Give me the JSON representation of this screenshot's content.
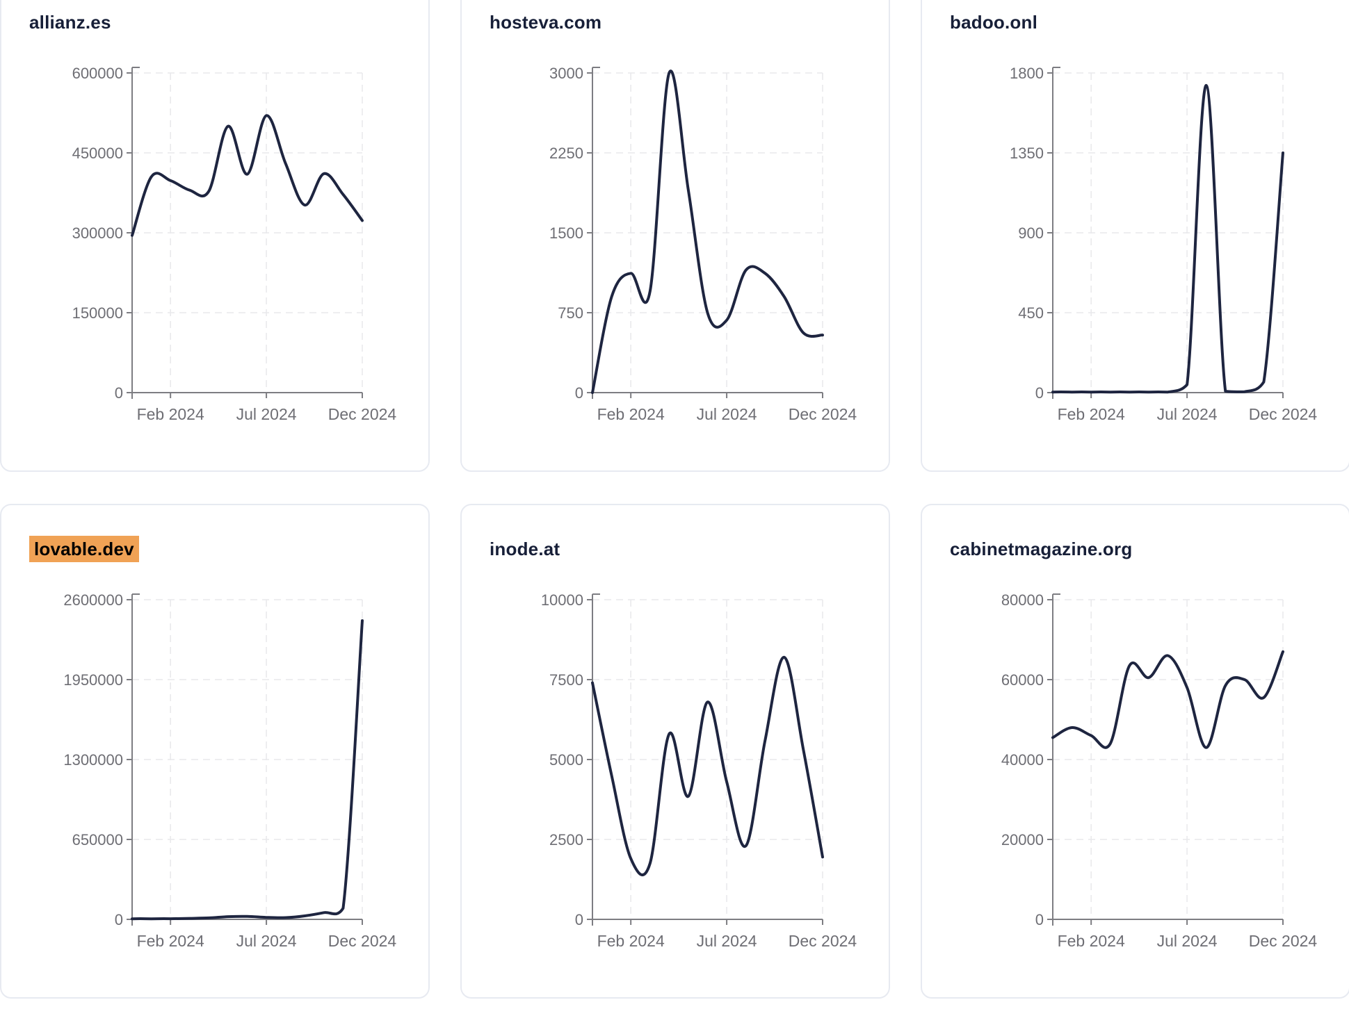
{
  "colors": {
    "page_background": "#ffffff",
    "card_background": "#ffffff",
    "card_border": "#e7eaf1",
    "title_text": "#171f38",
    "highlight_background": "#f0a255",
    "highlight_text": "#000000",
    "line": "#1e2540",
    "axis": "#7d7d82",
    "tick_label": "#6e6e74",
    "gridline": "#e9e9ec"
  },
  "chart_data": [
    {
      "type": "line",
      "title": "allianz.es",
      "highlighted": false,
      "x_start": "Dec 2023",
      "x_end": "Dec 2024",
      "x_interval": "monthly",
      "x": [
        "2023-12",
        "2024-01",
        "2024-02",
        "2024-03",
        "2024-04",
        "2024-05",
        "2024-06",
        "2024-07",
        "2024-08",
        "2024-09",
        "2024-10",
        "2024-11",
        "2024-12"
      ],
      "values": [
        295000,
        405000,
        398000,
        380000,
        378000,
        500000,
        410000,
        520000,
        430000,
        352000,
        411000,
        372000,
        323000
      ],
      "ylim": [
        0,
        600000
      ],
      "y_ticks": [
        0,
        150000,
        300000,
        450000,
        600000
      ],
      "x_tick_labels": [
        "Feb 2024",
        "Jul 2024",
        "Dec 2024"
      ],
      "x_tick_indices": [
        2,
        7,
        12
      ],
      "grid": true,
      "legend": false
    },
    {
      "type": "line",
      "title": "hosteva.com",
      "highlighted": false,
      "x_start": "Dec 2023",
      "x_end": "Dec 2024",
      "x_interval": "monthly",
      "x": [
        "2023-12",
        "2024-01",
        "2024-02",
        "2024-03",
        "2024-04",
        "2024-05",
        "2024-06",
        "2024-07",
        "2024-08",
        "2024-09",
        "2024-10",
        "2024-11",
        "2024-12"
      ],
      "values": [
        0,
        900,
        1120,
        950,
        3000,
        1900,
        750,
        680,
        1150,
        1120,
        900,
        560,
        540
      ],
      "ylim": [
        0,
        3000
      ],
      "y_ticks": [
        0,
        750,
        1500,
        2250,
        3000
      ],
      "x_tick_labels": [
        "Feb 2024",
        "Jul 2024",
        "Dec 2024"
      ],
      "x_tick_indices": [
        2,
        7,
        12
      ],
      "grid": true,
      "legend": false
    },
    {
      "type": "line",
      "title": "badoo.onl",
      "highlighted": false,
      "x_start": "Dec 2023",
      "x_end": "Dec 2024",
      "x_interval": "monthly",
      "x": [
        "2023-12",
        "2024-01",
        "2024-02",
        "2024-03",
        "2024-04",
        "2024-05",
        "2024-06",
        "2024-07",
        "2024-08",
        "2024-09",
        "2024-10",
        "2024-11",
        "2024-12"
      ],
      "values": [
        3,
        3,
        3,
        3,
        3,
        3,
        3,
        45,
        1730,
        8,
        5,
        60,
        1350
      ],
      "ylim": [
        0,
        1800
      ],
      "y_ticks": [
        0,
        450,
        900,
        1350,
        1800
      ],
      "x_tick_labels": [
        "Feb 2024",
        "Jul 2024",
        "Dec 2024"
      ],
      "x_tick_indices": [
        2,
        7,
        12
      ],
      "grid": true,
      "legend": false
    },
    {
      "type": "line",
      "title": "lovable.dev",
      "highlighted": true,
      "x_start": "Dec 2023",
      "x_end": "Dec 2024",
      "x_interval": "monthly",
      "x": [
        "2023-12",
        "2024-01",
        "2024-02",
        "2024-03",
        "2024-04",
        "2024-05",
        "2024-06",
        "2024-07",
        "2024-08",
        "2024-09",
        "2024-10",
        "2024-11",
        "2024-12"
      ],
      "values": [
        4000,
        4000,
        5000,
        8000,
        12000,
        22000,
        24000,
        16000,
        14000,
        28000,
        55000,
        90000,
        2430000
      ],
      "ylim": [
        0,
        2600000
      ],
      "y_ticks": [
        0,
        650000,
        1300000,
        1950000,
        2600000
      ],
      "x_tick_labels": [
        "Feb 2024",
        "Jul 2024",
        "Dec 2024"
      ],
      "x_tick_indices": [
        2,
        7,
        12
      ],
      "grid": true,
      "legend": false
    },
    {
      "type": "line",
      "title": "inode.at",
      "highlighted": false,
      "x_start": "Dec 2023",
      "x_end": "Dec 2024",
      "x_interval": "monthly",
      "x": [
        "2023-12",
        "2024-01",
        "2024-02",
        "2024-03",
        "2024-04",
        "2024-05",
        "2024-06",
        "2024-07",
        "2024-08",
        "2024-09",
        "2024-10",
        "2024-11",
        "2024-12"
      ],
      "values": [
        7400,
        4500,
        1900,
        1750,
        5800,
        3850,
        6800,
        4300,
        2300,
        5600,
        8200,
        5300,
        1950
      ],
      "ylim": [
        0,
        10000
      ],
      "y_ticks": [
        0,
        2500,
        5000,
        7500,
        10000
      ],
      "x_tick_labels": [
        "Feb 2024",
        "Jul 2024",
        "Dec 2024"
      ],
      "x_tick_indices": [
        2,
        7,
        12
      ],
      "grid": true,
      "legend": false
    },
    {
      "type": "line",
      "title": "cabinetmagazine.org",
      "highlighted": false,
      "x_start": "Dec 2023",
      "x_end": "Dec 2024",
      "x_interval": "monthly",
      "x": [
        "2023-12",
        "2024-01",
        "2024-02",
        "2024-03",
        "2024-04",
        "2024-05",
        "2024-06",
        "2024-07",
        "2024-08",
        "2024-09",
        "2024-10",
        "2024-11",
        "2024-12"
      ],
      "values": [
        45500,
        48000,
        46000,
        44000,
        63500,
        60500,
        66000,
        58000,
        43000,
        58500,
        60000,
        55500,
        67000
      ],
      "ylim": [
        0,
        80000
      ],
      "y_ticks": [
        0,
        20000,
        40000,
        60000,
        80000
      ],
      "x_tick_labels": [
        "Feb 2024",
        "Jul 2024",
        "Dec 2024"
      ],
      "x_tick_indices": [
        2,
        7,
        12
      ],
      "grid": true,
      "legend": false
    }
  ]
}
